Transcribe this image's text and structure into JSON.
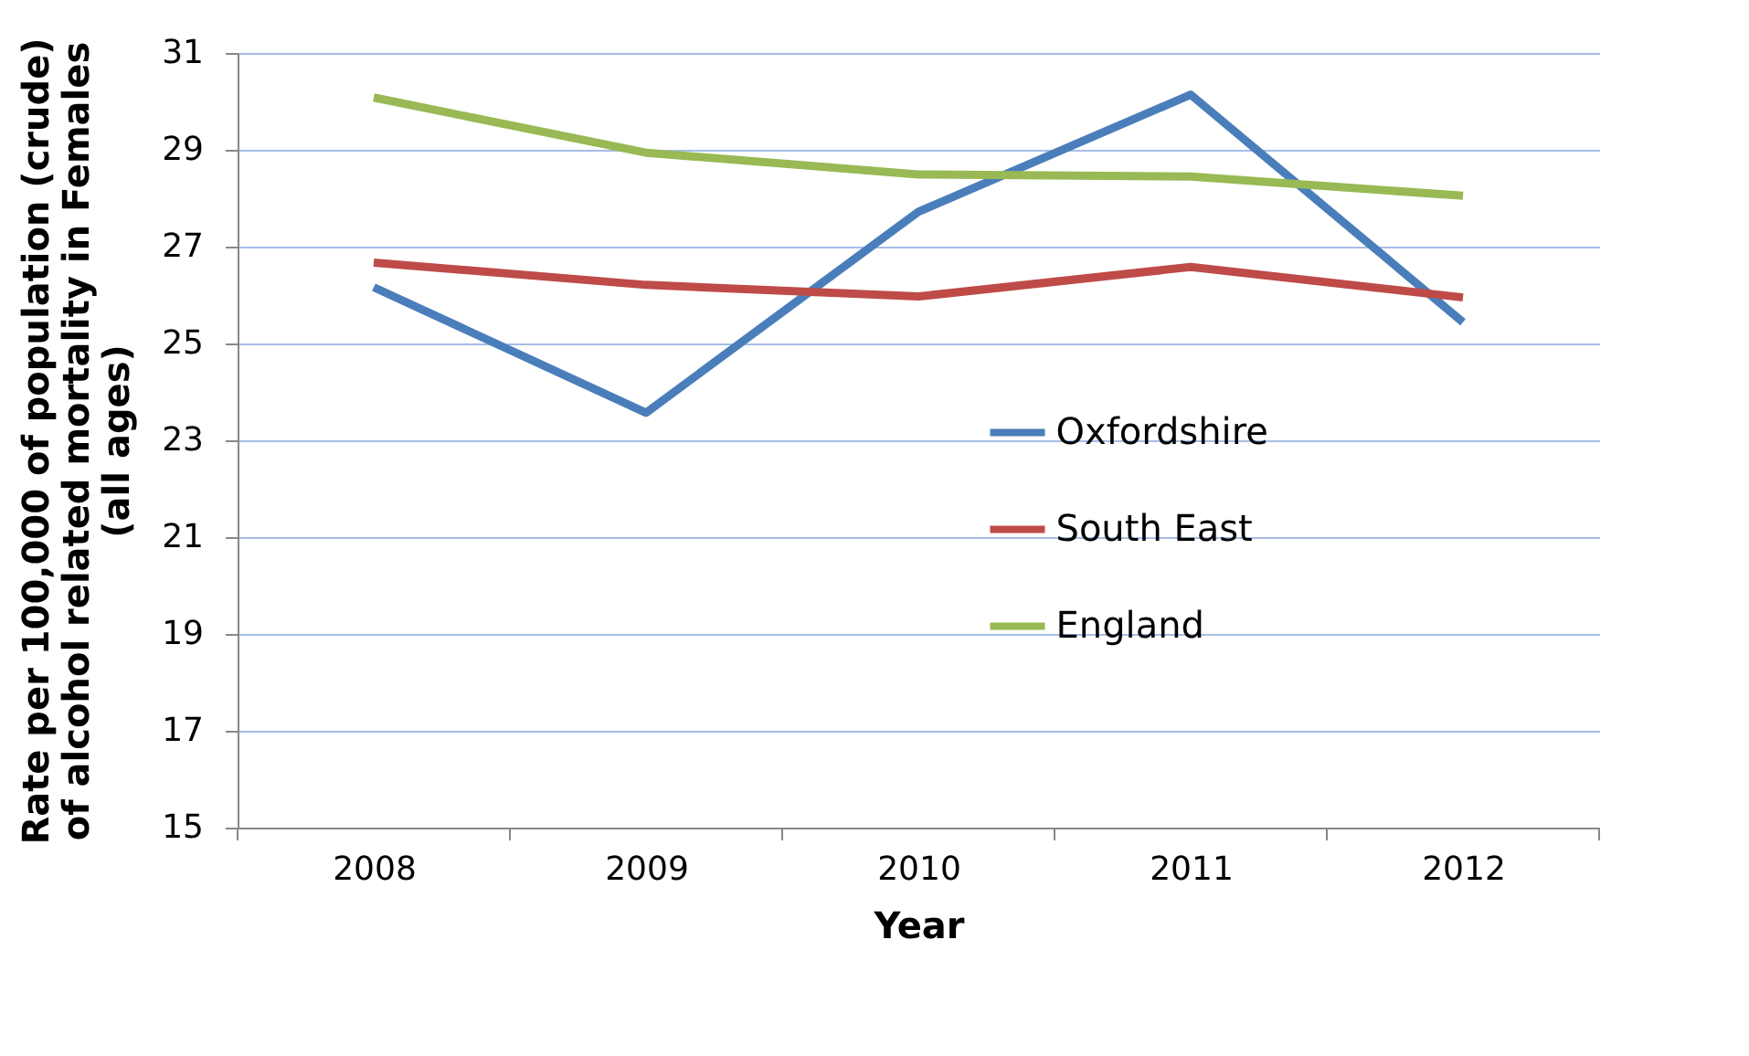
{
  "chart_data": {
    "type": "line",
    "xlabel": "Year",
    "ylabel": "Rate per 100,000 of population (crude)\nof alcohol related mortality in Females\n(all ages)",
    "categories": [
      "2008",
      "2009",
      "2010",
      "2011",
      "2012"
    ],
    "series": [
      {
        "name": "Oxfordshire",
        "color": "#4a7ebb",
        "values": [
          26.16,
          23.57,
          27.72,
          30.14,
          25.44
        ]
      },
      {
        "name": "South East",
        "color": "#be4b48",
        "values": [
          26.67,
          26.21,
          25.97,
          26.58,
          25.95
        ]
      },
      {
        "name": "England",
        "color": "#98b954",
        "values": [
          30.08,
          28.94,
          28.49,
          28.45,
          28.05
        ]
      }
    ],
    "ylim": [
      15,
      31
    ],
    "yticks": [
      15,
      17,
      19,
      21,
      23,
      25,
      27,
      29,
      31
    ],
    "grid": "y",
    "legend": "right",
    "marker": "none",
    "line_style": "solid"
  }
}
